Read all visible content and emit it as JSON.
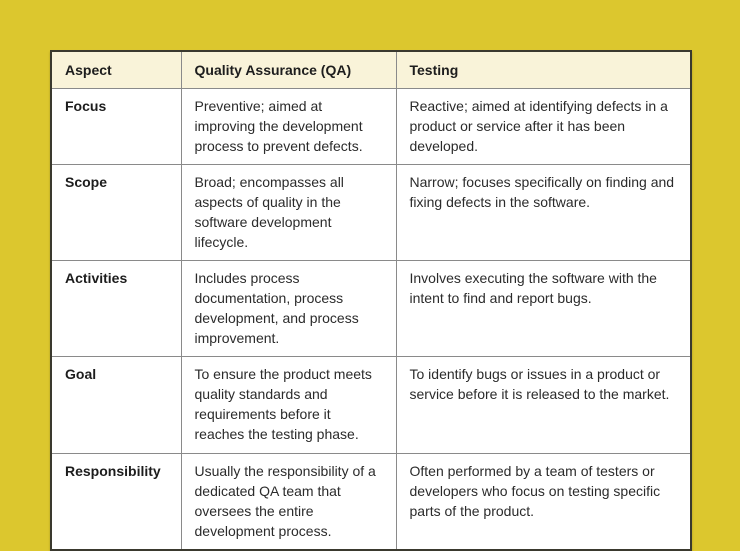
{
  "page": {
    "background_color": "#dcc72e",
    "header_bg_color": "#f9f3d9",
    "body_bg_color": "#ffffff",
    "outer_border_color": "#3a392e",
    "inner_border_color": "#8a8a8a",
    "text_color": "#2b2b2b"
  },
  "table": {
    "columns": [
      "Aspect",
      "Quality Assurance (QA)",
      "Testing"
    ],
    "rows": [
      {
        "aspect": "Focus",
        "qa": "Preventive; aimed at improving the development process to prevent defects.",
        "testing": "Reactive; aimed at identifying defects in a product or service after it has been developed."
      },
      {
        "aspect": "Scope",
        "qa": "Broad; encompasses all aspects of quality in the software development lifecycle.",
        "testing": "Narrow; focuses specifically on finding and fixing defects in the software."
      },
      {
        "aspect": "Activities",
        "qa": "Includes process documentation, process development, and process improvement.",
        "testing": "Involves executing the software with the intent to find and report bugs."
      },
      {
        "aspect": "Goal",
        "qa": "To ensure the product meets quality standards and requirements before it reaches the testing phase.",
        "testing": "To identify bugs or issues in a product or service before it is released to the market."
      },
      {
        "aspect": "Responsibility",
        "qa": "Usually the responsibility of a dedicated QA team that oversees the entire development process.",
        "testing": "Often performed by a team of testers or developers who focus on testing specific parts of the product."
      }
    ]
  }
}
